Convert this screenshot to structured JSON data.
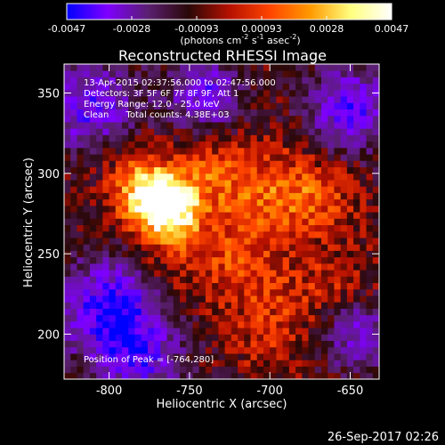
{
  "chart_data": {
    "type": "heatmap",
    "title": "Reconstructed RHESSI Image",
    "colorbar": {
      "ticks": [
        "-0.0047",
        "-0.0028",
        "-0.00093",
        "0.00093",
        "0.0028",
        "0.0047"
      ],
      "min": -0.0047,
      "max": 0.0047,
      "label_main": "(photons cm",
      "label_sup1": "-2",
      "label_mid": " s",
      "label_sup2": "-1",
      "label_mid2": " asec",
      "label_sup3": "-2",
      "label_end": ")",
      "colors": [
        "#0000ff",
        "#7f00ff",
        "#5a1f70",
        "#2a0808",
        "#b51000",
        "#ff4400",
        "#ff9a00",
        "#ffff80",
        "#ffffff"
      ]
    },
    "annotations": [
      "13-Apr-2015 02:37:56.000 to 02:47:56.000",
      "Detectors: 3F 5F 6F 7F 8F 9F, Att 1",
      "Energy Range: 12.0 - 25.0 keV",
      "Clean      Total counts: 4.38E+03"
    ],
    "peak_label": "Position of Peak = [-764,280]",
    "xlabel": "Heliocentric X (arcsec)",
    "ylabel": "Heliocentric Y (arcsec)",
    "xlim": [
      -828,
      -632
    ],
    "ylim": [
      172,
      368
    ],
    "xticks": [
      -800,
      -750,
      -700,
      -650
    ],
    "yticks": [
      200,
      250,
      300,
      350
    ],
    "peak": [
      -764,
      280
    ],
    "grid": false
  },
  "footer_date": "26-Sep-2017 02:26"
}
